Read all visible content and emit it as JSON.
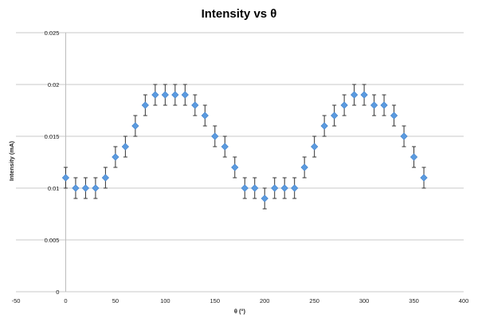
{
  "chart_data": {
    "type": "scatter",
    "title": "Intensity vs θ",
    "xlabel": "θ (°)",
    "ylabel": "Intensity (mA)",
    "xlim": [
      -50,
      400
    ],
    "ylim": [
      0,
      0.025
    ],
    "xticks": [
      -50,
      0,
      50,
      100,
      150,
      200,
      250,
      300,
      350,
      400
    ],
    "xtick_labels": [
      "-50",
      "0",
      "50",
      "100",
      "150",
      "200",
      "250",
      "300",
      "350",
      "400"
    ],
    "yticks": [
      0,
      0.005,
      0.01,
      0.015,
      0.02,
      0.025
    ],
    "ytick_labels": [
      "0",
      "0.005",
      "0.01",
      "0.015",
      "0.02",
      "0.025"
    ],
    "grid": "horizontal",
    "legend": "none",
    "series": [
      {
        "name": "Intensity",
        "marker": "diamond",
        "color": "#5b9be0",
        "error": 0.001,
        "x": [
          0,
          10,
          20,
          30,
          40,
          50,
          60,
          70,
          80,
          90,
          100,
          110,
          120,
          130,
          140,
          150,
          160,
          170,
          180,
          190,
          200,
          210,
          220,
          230,
          240,
          250,
          260,
          270,
          280,
          290,
          300,
          310,
          320,
          330,
          340,
          350,
          360
        ],
        "y": [
          0.011,
          0.01,
          0.01,
          0.01,
          0.011,
          0.013,
          0.014,
          0.016,
          0.018,
          0.019,
          0.019,
          0.019,
          0.019,
          0.018,
          0.017,
          0.015,
          0.014,
          0.012,
          0.01,
          0.01,
          0.009,
          0.01,
          0.01,
          0.01,
          0.012,
          0.014,
          0.016,
          0.017,
          0.018,
          0.019,
          0.019,
          0.018,
          0.018,
          0.017,
          0.015,
          0.013,
          0.011
        ]
      }
    ]
  }
}
